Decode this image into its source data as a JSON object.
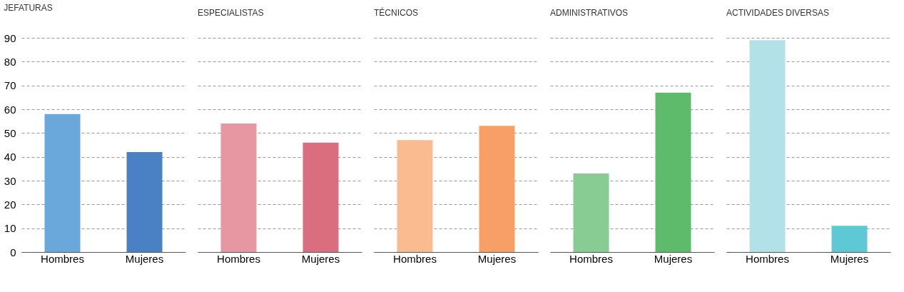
{
  "chart_data": [
    {
      "type": "bar",
      "title": "JEFATURAS",
      "categories": [
        "Hombres",
        "Mujeres"
      ],
      "values": [
        58,
        42
      ],
      "colors": [
        "#6aa8dc",
        "#4a80c4"
      ],
      "ylim": [
        0,
        90
      ],
      "yticks": [
        0,
        10,
        20,
        30,
        40,
        50,
        60,
        70,
        80,
        90
      ],
      "grid": "y"
    },
    {
      "type": "bar",
      "title": "ESPECIALISTAS",
      "categories": [
        "Hombres",
        "Mujeres"
      ],
      "values": [
        54,
        46
      ],
      "colors": [
        "#e697a2",
        "#db6e7e"
      ],
      "ylim": [
        0,
        90
      ],
      "yticks": [
        0,
        10,
        20,
        30,
        40,
        50,
        60,
        70,
        80,
        90
      ],
      "grid": "y",
      "tick_labels": "x"
    },
    {
      "type": "bar",
      "title": "TÉCNICOS",
      "categories": [
        "Hombres",
        "Mujeres"
      ],
      "values": [
        47,
        53
      ],
      "colors": [
        "#f9bb8f",
        "#f79f66"
      ],
      "ylim": [
        0,
        90
      ],
      "yticks": [
        0,
        10,
        20,
        30,
        40,
        50,
        60,
        70,
        80,
        90
      ],
      "grid": "y",
      "tick_labels": "x"
    },
    {
      "type": "bar",
      "title": "ADMINISTRATIVOS",
      "categories": [
        "Hombres",
        "Mujeres"
      ],
      "values": [
        33,
        67
      ],
      "colors": [
        "#88cc94",
        "#5dbb6b"
      ],
      "ylim": [
        0,
        90
      ],
      "yticks": [
        0,
        10,
        20,
        30,
        40,
        50,
        60,
        70,
        80,
        90
      ],
      "grid": "y",
      "tick_labels": "x"
    },
    {
      "type": "bar",
      "title": "ACTIVIDADES DIVERSAS",
      "categories": [
        "Hombres",
        "Mujeres"
      ],
      "values": [
        89,
        11
      ],
      "colors": [
        "#b3e1e8",
        "#5ec8d4"
      ],
      "ylim": [
        0,
        90
      ],
      "yticks": [
        0,
        10,
        20,
        30,
        40,
        50,
        60,
        70,
        80,
        90
      ],
      "grid": "y",
      "tick_labels": "x"
    }
  ]
}
